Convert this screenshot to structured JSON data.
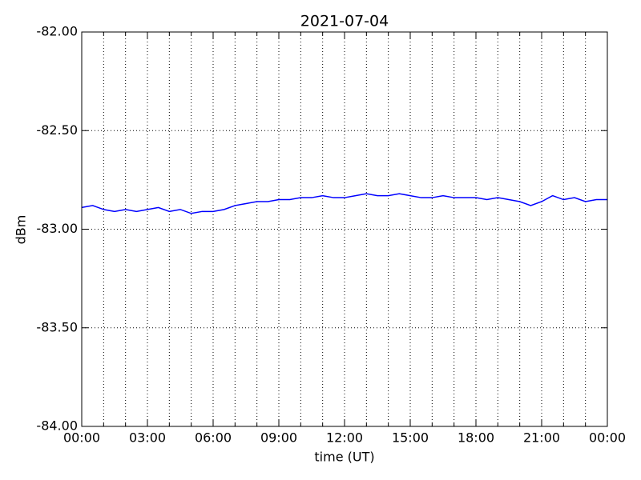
{
  "chart_data": {
    "type": "line",
    "title": "2021-07-04",
    "x_label": "time (UT)",
    "y_label": "dBm",
    "x": [
      0,
      0.5,
      1,
      1.5,
      2,
      2.5,
      3,
      3.5,
      4,
      4.5,
      5,
      5.5,
      6,
      6.5,
      7,
      7.5,
      8,
      8.5,
      9,
      9.5,
      10,
      10.5,
      11,
      11.5,
      12,
      12.5,
      13,
      13.5,
      14,
      14.5,
      15,
      15.5,
      16,
      16.5,
      17,
      17.5,
      18,
      18.5,
      19,
      19.5,
      20,
      20.5,
      21,
      21.5,
      22,
      22.5,
      23,
      23.5,
      24
    ],
    "series": [
      {
        "color": "#0000ff",
        "values": [
          -82.89,
          -82.88,
          -82.9,
          -82.91,
          -82.9,
          -82.91,
          -82.9,
          -82.89,
          -82.91,
          -82.9,
          -82.92,
          -82.91,
          -82.91,
          -82.9,
          -82.88,
          -82.87,
          -82.86,
          -82.86,
          -82.85,
          -82.85,
          -82.84,
          -82.84,
          -82.83,
          -82.84,
          -82.84,
          -82.83,
          -82.82,
          -82.83,
          -82.83,
          -82.82,
          -82.83,
          -82.84,
          -82.84,
          -82.83,
          -82.84,
          -82.84,
          -82.84,
          -82.85,
          -82.84,
          -82.85,
          -82.86,
          -82.88,
          -82.86,
          -82.83,
          -82.85,
          -82.84,
          -82.86,
          -82.85,
          -82.85
        ]
      }
    ],
    "xlim": [
      0,
      24
    ],
    "xticks": [
      {
        "value": 0,
        "label": "00:00"
      },
      {
        "value": 3,
        "label": "03:00"
      },
      {
        "value": 6,
        "label": "06:00"
      },
      {
        "value": 9,
        "label": "09:00"
      },
      {
        "value": 12,
        "label": "12:00"
      },
      {
        "value": 15,
        "label": "15:00"
      },
      {
        "value": 18,
        "label": "18:00"
      },
      {
        "value": 21,
        "label": "21:00"
      },
      {
        "value": 24,
        "label": "00:00"
      }
    ],
    "x_minor_ticks": [
      1,
      2,
      4,
      5,
      7,
      8,
      10,
      11,
      13,
      14,
      16,
      17,
      19,
      20,
      22,
      23
    ],
    "ylim": [
      -84,
      -82
    ],
    "yticks": [
      {
        "value": -84,
        "label": "-84.00"
      },
      {
        "value": -83.5,
        "label": "-83.50"
      },
      {
        "value": -83,
        "label": "-83.00"
      },
      {
        "value": -82.5,
        "label": "-82.50"
      },
      {
        "value": -82,
        "label": "-82.00"
      }
    ],
    "grid": true
  }
}
